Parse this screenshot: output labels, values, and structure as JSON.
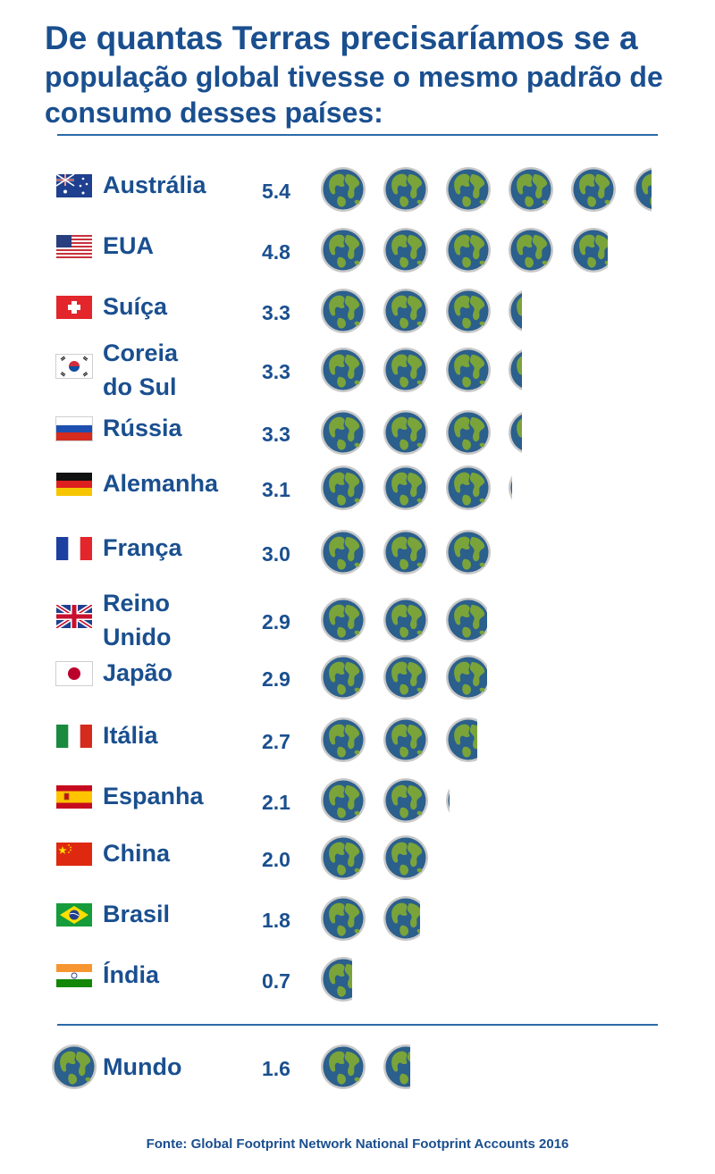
{
  "title": {
    "line1": "De quantas Terras precisaríamos se a",
    "line2": "população global tivesse o mesmo padrão de",
    "line3": "consumo desses países:"
  },
  "source": "Fonte: Global Footprint Network National Footprint Accounts 2016",
  "colors": {
    "text": "#1a4f8f",
    "ocean": "#2b5f8c",
    "land": "#7aa43a",
    "rim": "#c9c9c9"
  },
  "chart_data": {
    "type": "bar",
    "unit_icon": "globe-icon",
    "categories": [
      "Austrália",
      "EUA",
      "Suíça",
      "Coreia do Sul",
      "Rússia",
      "Alemanha",
      "França",
      "Reino Unido",
      "Japão",
      "Itália",
      "Espanha",
      "China",
      "Brasil",
      "Índia",
      "Mundo"
    ],
    "values": [
      5.4,
      4.8,
      3.3,
      3.3,
      3.3,
      3.1,
      3.0,
      2.9,
      2.9,
      2.7,
      2.1,
      2.0,
      1.8,
      0.7,
      1.6
    ],
    "rows": [
      {
        "country": "Austrália",
        "value": "5.4",
        "n": 5.4,
        "flag": "australia-flag-icon"
      },
      {
        "country": "EUA",
        "value": "4.8",
        "n": 4.8,
        "flag": "usa-flag-icon"
      },
      {
        "country": "Suíça",
        "value": "3.3",
        "n": 3.3,
        "flag": "switzerland-flag-icon"
      },
      {
        "country": "Coreia do Sul",
        "country_line1": "Coreia",
        "country_line2": "do Sul",
        "value": "3.3",
        "n": 3.3,
        "flag": "south-korea-flag-icon"
      },
      {
        "country": "Rússia",
        "value": "3.3",
        "n": 3.3,
        "flag": "russia-flag-icon"
      },
      {
        "country": "Alemanha",
        "value": "3.1",
        "n": 3.1,
        "flag": "germany-flag-icon"
      },
      {
        "country": "França",
        "value": "3.0",
        "n": 3.0,
        "flag": "france-flag-icon"
      },
      {
        "country": "Reino Unido",
        "country_line1": "Reino",
        "country_line2": "Unido",
        "value": "2.9",
        "n": 2.9,
        "flag": "uk-flag-icon"
      },
      {
        "country": "Japão",
        "value": "2.9",
        "n": 2.9,
        "flag": "japan-flag-icon"
      },
      {
        "country": "Itália",
        "value": "2.7",
        "n": 2.7,
        "flag": "italy-flag-icon"
      },
      {
        "country": "Espanha",
        "value": "2.1",
        "n": 2.1,
        "flag": "spain-flag-icon"
      },
      {
        "country": "China",
        "value": "2.0",
        "n": 2.0,
        "flag": "china-flag-icon"
      },
      {
        "country": "Brasil",
        "value": "1.8",
        "n": 1.8,
        "flag": "brazil-flag-icon"
      },
      {
        "country": "Índia",
        "value": "0.7",
        "n": 0.7,
        "flag": "india-flag-icon"
      }
    ],
    "world": {
      "country": "Mundo",
      "value": "1.6",
      "n": 1.6,
      "icon": "globe-icon"
    }
  }
}
